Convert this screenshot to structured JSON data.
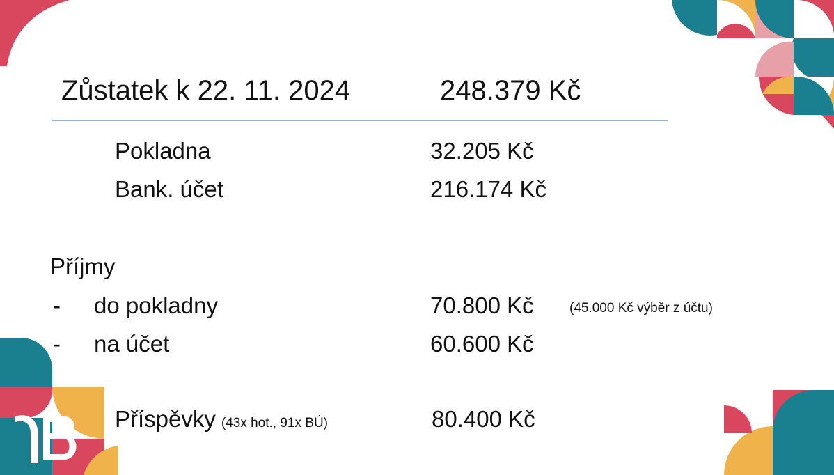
{
  "header": {
    "title": "Zůstatek k 22. 11. 2024",
    "total": "248.379 Kč"
  },
  "balances": [
    {
      "label": "Pokladna",
      "amount": "32.205 Kč"
    },
    {
      "label": "Bank. účet",
      "amount": "216.174 Kč"
    }
  ],
  "income": {
    "title": "Příjmy",
    "items": [
      {
        "bullet": "-",
        "label": "do pokladny",
        "amount": "70.800 Kč",
        "note": "(45.000 Kč výběr z účtu)"
      },
      {
        "bullet": "-",
        "label": "na účet",
        "amount": "60.600 Kč"
      }
    ]
  },
  "contributions": {
    "label": "Příspěvky",
    "note": "(43x hot., 91x BÚ)",
    "amount": "80.400 Kč"
  }
}
